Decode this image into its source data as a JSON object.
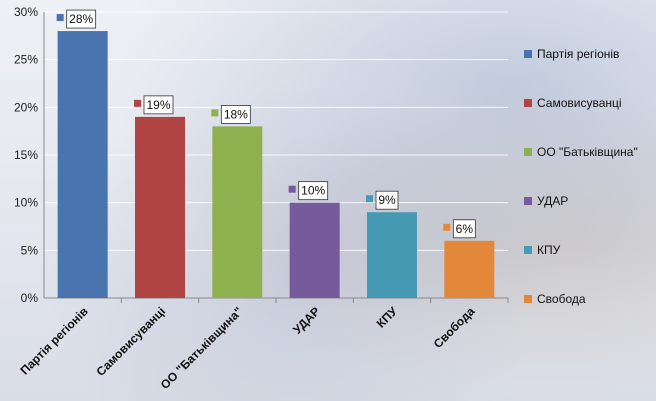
{
  "chart_data": {
    "type": "bar",
    "categories": [
      "Партія регіонів",
      "Самовисуванці",
      "ОО \"Батьківщина\"",
      "УДАР",
      "КПУ",
      "Свобода"
    ],
    "values": [
      28,
      19,
      18,
      10,
      9,
      6
    ],
    "data_labels": [
      "28%",
      "19%",
      "18%",
      "10%",
      "9%",
      "6%"
    ],
    "colors": [
      "#4a74ad",
      "#b04543",
      "#8fb04e",
      "#755a9c",
      "#479ab4",
      "#e3883b"
    ],
    "ylim": [
      0,
      30
    ],
    "yticks": [
      0,
      5,
      10,
      15,
      20,
      25,
      30
    ],
    "ytick_labels": [
      "0%",
      "5%",
      "10%",
      "15%",
      "20%",
      "25%",
      "30%"
    ],
    "title": "",
    "xlabel": "",
    "ylabel": "",
    "grid": true,
    "legend_position": "right",
    "legend": [
      "Партія регіонів",
      "Самовисуванці",
      "ОО \"Батьківщина\"",
      "УДАР",
      "КПУ",
      "Свобода"
    ]
  }
}
